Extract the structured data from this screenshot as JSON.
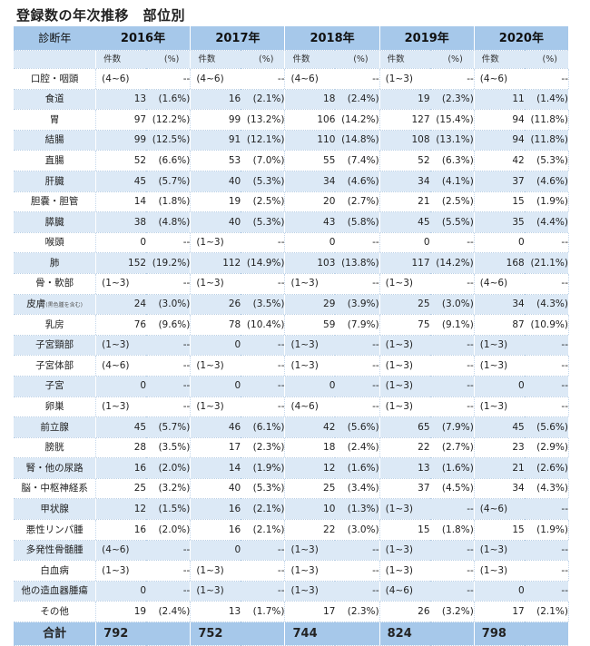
{
  "title": "登録数の年次推移　部位別",
  "header": {
    "label": "診断年",
    "years": [
      "2016年",
      "2017年",
      "2018年",
      "2019年",
      "2020年"
    ],
    "sub_count": "件数",
    "sub_pct": "(%)"
  },
  "rows": [
    {
      "label": "口腔・咽頭",
      "cells": [
        [
          "(4~6)",
          "--"
        ],
        [
          "(4~6)",
          "--"
        ],
        [
          "(4~6)",
          "--"
        ],
        [
          "(1~3)",
          "--"
        ],
        [
          "(4~6)",
          "--"
        ]
      ]
    },
    {
      "label": "食道",
      "cells": [
        [
          "13",
          "(1.6%)"
        ],
        [
          "16",
          "(2.1%)"
        ],
        [
          "18",
          "(2.4%)"
        ],
        [
          "19",
          "(2.3%)"
        ],
        [
          "11",
          "(1.4%)"
        ]
      ]
    },
    {
      "label": "胃",
      "cells": [
        [
          "97",
          "(12.2%)"
        ],
        [
          "99",
          "(13.2%)"
        ],
        [
          "106",
          "(14.2%)"
        ],
        [
          "127",
          "(15.4%)"
        ],
        [
          "94",
          "(11.8%)"
        ]
      ]
    },
    {
      "label": "結腸",
      "cells": [
        [
          "99",
          "(12.5%)"
        ],
        [
          "91",
          "(12.1%)"
        ],
        [
          "110",
          "(14.8%)"
        ],
        [
          "108",
          "(13.1%)"
        ],
        [
          "94",
          "(11.8%)"
        ]
      ]
    },
    {
      "label": "直腸",
      "cells": [
        [
          "52",
          "(6.6%)"
        ],
        [
          "53",
          "(7.0%)"
        ],
        [
          "55",
          "(7.4%)"
        ],
        [
          "52",
          "(6.3%)"
        ],
        [
          "42",
          "(5.3%)"
        ]
      ]
    },
    {
      "label": "肝臓",
      "cells": [
        [
          "45",
          "(5.7%)"
        ],
        [
          "40",
          "(5.3%)"
        ],
        [
          "34",
          "(4.6%)"
        ],
        [
          "34",
          "(4.1%)"
        ],
        [
          "37",
          "(4.6%)"
        ]
      ]
    },
    {
      "label": "胆嚢・胆管",
      "cells": [
        [
          "14",
          "(1.8%)"
        ],
        [
          "19",
          "(2.5%)"
        ],
        [
          "20",
          "(2.7%)"
        ],
        [
          "21",
          "(2.5%)"
        ],
        [
          "15",
          "(1.9%)"
        ]
      ]
    },
    {
      "label": "膵臓",
      "cells": [
        [
          "38",
          "(4.8%)"
        ],
        [
          "40",
          "(5.3%)"
        ],
        [
          "43",
          "(5.8%)"
        ],
        [
          "45",
          "(5.5%)"
        ],
        [
          "35",
          "(4.4%)"
        ]
      ]
    },
    {
      "label": "喉頭",
      "cells": [
        [
          "0",
          "--"
        ],
        [
          "(1~3)",
          "--"
        ],
        [
          "0",
          "--"
        ],
        [
          "0",
          "--"
        ],
        [
          "0",
          "--"
        ]
      ]
    },
    {
      "label": "肺",
      "cells": [
        [
          "152",
          "(19.2%)"
        ],
        [
          "112",
          "(14.9%)"
        ],
        [
          "103",
          "(13.8%)"
        ],
        [
          "117",
          "(14.2%)"
        ],
        [
          "168",
          "(21.1%)"
        ]
      ]
    },
    {
      "label": "骨・軟部",
      "cells": [
        [
          "(1~3)",
          "--"
        ],
        [
          "(1~3)",
          "--"
        ],
        [
          "(1~3)",
          "--"
        ],
        [
          "(1~3)",
          "--"
        ],
        [
          "(4~6)",
          "--"
        ]
      ]
    },
    {
      "label": "皮膚",
      "label_note": "(黒色腫を含む)",
      "cells": [
        [
          "24",
          "(3.0%)"
        ],
        [
          "26",
          "(3.5%)"
        ],
        [
          "29",
          "(3.9%)"
        ],
        [
          "25",
          "(3.0%)"
        ],
        [
          "34",
          "(4.3%)"
        ]
      ]
    },
    {
      "label": "乳房",
      "cells": [
        [
          "76",
          "(9.6%)"
        ],
        [
          "78",
          "(10.4%)"
        ],
        [
          "59",
          "(7.9%)"
        ],
        [
          "75",
          "(9.1%)"
        ],
        [
          "87",
          "(10.9%)"
        ]
      ]
    },
    {
      "label": "子宮頸部",
      "cells": [
        [
          "(1~3)",
          "--"
        ],
        [
          "0",
          "--"
        ],
        [
          "(1~3)",
          "--"
        ],
        [
          "(1~3)",
          "--"
        ],
        [
          "(1~3)",
          "--"
        ]
      ]
    },
    {
      "label": "子宮体部",
      "cells": [
        [
          "(4~6)",
          "--"
        ],
        [
          "(1~3)",
          "--"
        ],
        [
          "(1~3)",
          "--"
        ],
        [
          "(1~3)",
          "--"
        ],
        [
          "(1~3)",
          "--"
        ]
      ]
    },
    {
      "label": "子宮",
      "cells": [
        [
          "0",
          "--"
        ],
        [
          "0",
          "--"
        ],
        [
          "0",
          "--"
        ],
        [
          "(1~3)",
          "--"
        ],
        [
          "0",
          "--"
        ]
      ]
    },
    {
      "label": "卵巣",
      "cells": [
        [
          "(1~3)",
          "--"
        ],
        [
          "(1~3)",
          "--"
        ],
        [
          "(4~6)",
          "--"
        ],
        [
          "(1~3)",
          "--"
        ],
        [
          "(1~3)",
          "--"
        ]
      ]
    },
    {
      "label": "前立腺",
      "cells": [
        [
          "45",
          "(5.7%)"
        ],
        [
          "46",
          "(6.1%)"
        ],
        [
          "42",
          "(5.6%)"
        ],
        [
          "65",
          "(7.9%)"
        ],
        [
          "45",
          "(5.6%)"
        ]
      ]
    },
    {
      "label": "膀胱",
      "cells": [
        [
          "28",
          "(3.5%)"
        ],
        [
          "17",
          "(2.3%)"
        ],
        [
          "18",
          "(2.4%)"
        ],
        [
          "22",
          "(2.7%)"
        ],
        [
          "23",
          "(2.9%)"
        ]
      ]
    },
    {
      "label": "腎・他の尿路",
      "cells": [
        [
          "16",
          "(2.0%)"
        ],
        [
          "14",
          "(1.9%)"
        ],
        [
          "12",
          "(1.6%)"
        ],
        [
          "13",
          "(1.6%)"
        ],
        [
          "21",
          "(2.6%)"
        ]
      ]
    },
    {
      "label": "脳・中枢神経系",
      "cells": [
        [
          "25",
          "(3.2%)"
        ],
        [
          "40",
          "(5.3%)"
        ],
        [
          "25",
          "(3.4%)"
        ],
        [
          "37",
          "(4.5%)"
        ],
        [
          "34",
          "(4.3%)"
        ]
      ]
    },
    {
      "label": "甲状腺",
      "cells": [
        [
          "12",
          "(1.5%)"
        ],
        [
          "16",
          "(2.1%)"
        ],
        [
          "10",
          "(1.3%)"
        ],
        [
          "(1~3)",
          "--"
        ],
        [
          "(4~6)",
          "--"
        ]
      ]
    },
    {
      "label": "悪性リンパ腫",
      "cells": [
        [
          "16",
          "(2.0%)"
        ],
        [
          "16",
          "(2.1%)"
        ],
        [
          "22",
          "(3.0%)"
        ],
        [
          "15",
          "(1.8%)"
        ],
        [
          "15",
          "(1.9%)"
        ]
      ]
    },
    {
      "label": "多発性骨髄腫",
      "cells": [
        [
          "(4~6)",
          "--"
        ],
        [
          "0",
          "--"
        ],
        [
          "(1~3)",
          "--"
        ],
        [
          "(1~3)",
          "--"
        ],
        [
          "(1~3)",
          "--"
        ]
      ]
    },
    {
      "label": "白血病",
      "cells": [
        [
          "(1~3)",
          "--"
        ],
        [
          "(1~3)",
          "--"
        ],
        [
          "(1~3)",
          "--"
        ],
        [
          "(1~3)",
          "--"
        ],
        [
          "(1~3)",
          "--"
        ]
      ]
    },
    {
      "label": "他の造血器腫瘍",
      "cells": [
        [
          "0",
          "--"
        ],
        [
          "(1~3)",
          "--"
        ],
        [
          "(1~3)",
          "--"
        ],
        [
          "(4~6)",
          "--"
        ],
        [
          "0",
          "--"
        ]
      ]
    },
    {
      "label": "その他",
      "cells": [
        [
          "19",
          "(2.4%)"
        ],
        [
          "13",
          "(1.7%)"
        ],
        [
          "17",
          "(2.3%)"
        ],
        [
          "26",
          "(3.2%)"
        ],
        [
          "17",
          "(2.1%)"
        ]
      ]
    }
  ],
  "total": {
    "label": "合計",
    "values": [
      "792",
      "752",
      "744",
      "824",
      "798"
    ]
  }
}
